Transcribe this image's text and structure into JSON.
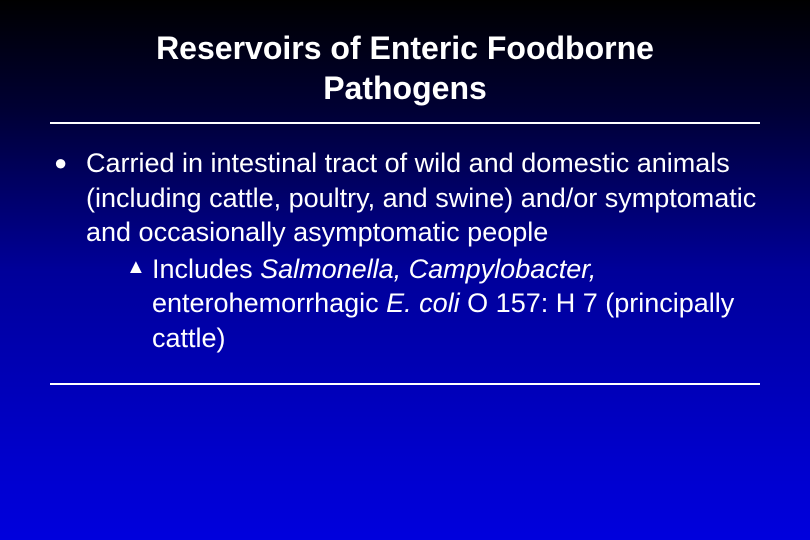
{
  "slide": {
    "title": "Reservoirs of Enteric Foodborne Pathogens",
    "title_fontsize": 32,
    "body_fontsize": 27,
    "background_gradient": [
      "#000000",
      "#000033",
      "#000099",
      "#0000cc",
      "#0000dd"
    ],
    "text_color": "#ffffff",
    "rule_color": "#ffffff",
    "bullets": [
      {
        "level": 1,
        "marker": "●",
        "text": "Carried in intestinal tract of wild and domestic animals (including cattle, poultry, and swine) and/or symptomatic and occasionally asymptomatic people",
        "children": [
          {
            "level": 2,
            "marker": "▲",
            "segments": {
              "pre": "Includes ",
              "it1": "Salmonella, Campylobacter,",
              "mid": " enterohemorrhagic ",
              "it2": "E. coli",
              "post": " O 157: H 7 (principally cattle)"
            }
          }
        ]
      }
    ]
  }
}
